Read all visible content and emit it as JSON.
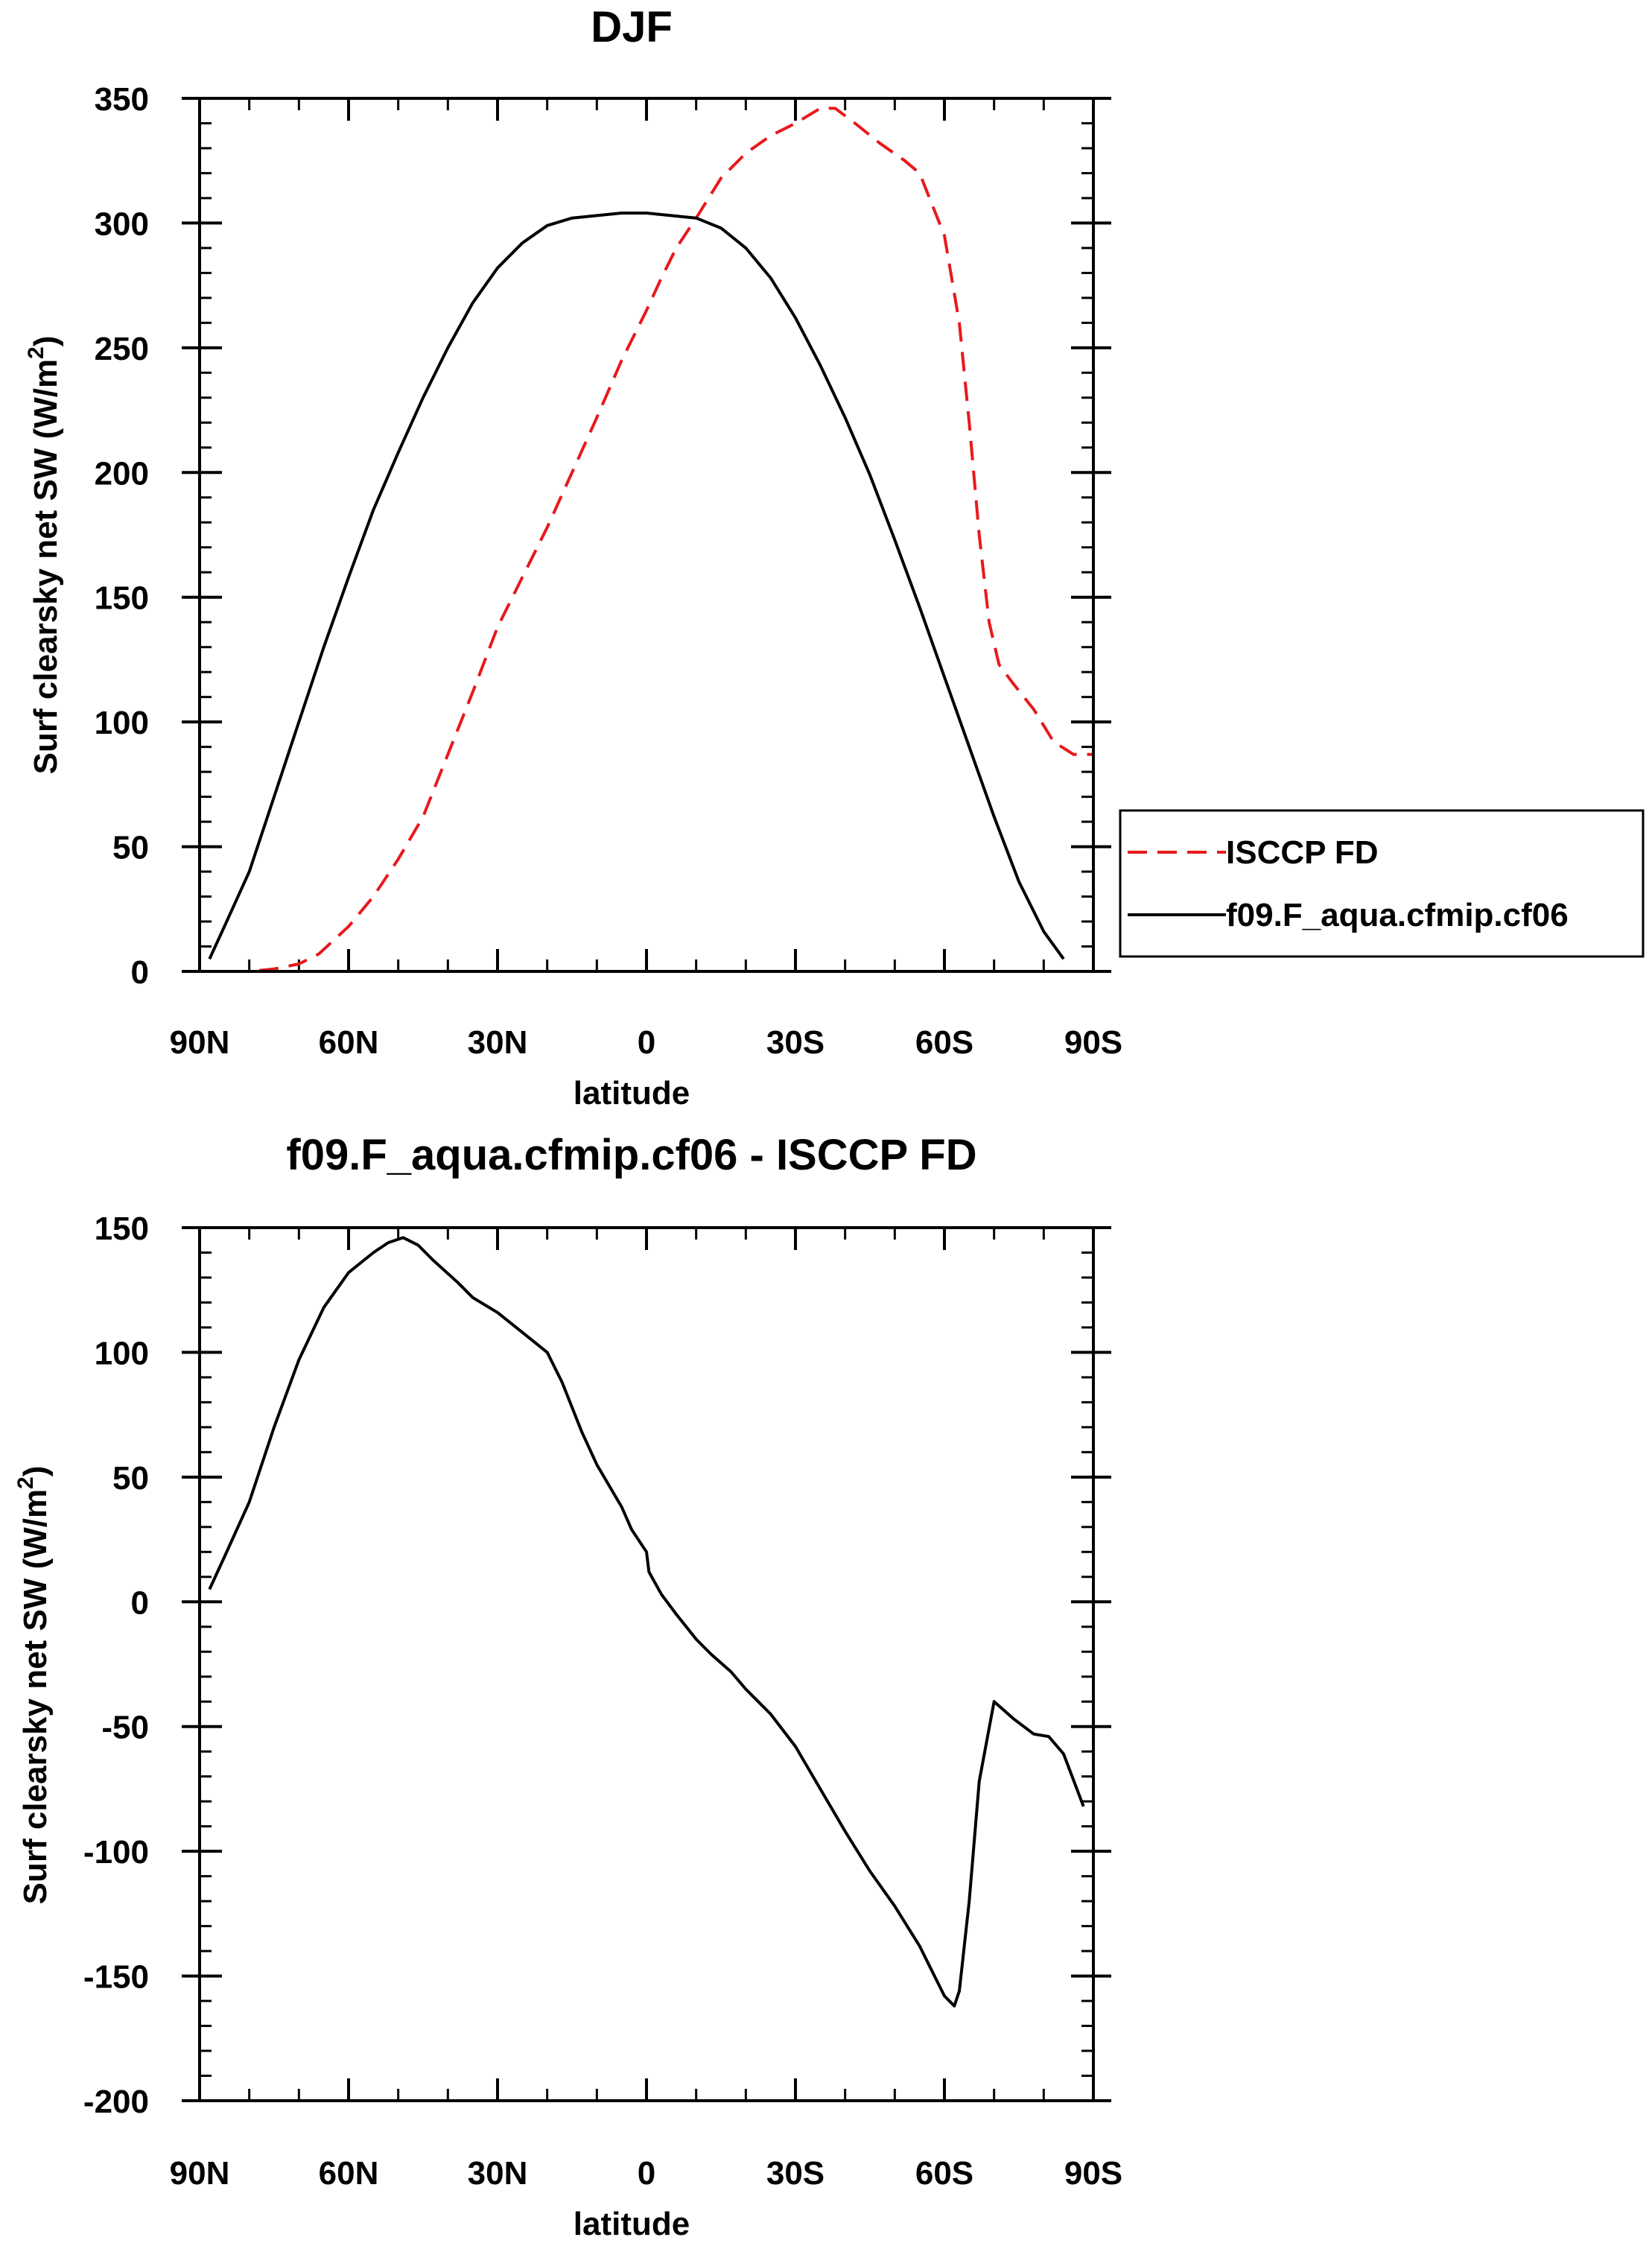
{
  "chart_data": [
    {
      "type": "line",
      "title": "DJF",
      "xlabel": "latitude",
      "ylabel": "Surf clearsky net SW (W/m²)",
      "ylabel_main": "Surf clearsky net SW (W/m",
      "ylabel_sup": "2",
      "ylabel_end": ")",
      "xlim": [
        -90,
        90
      ],
      "ylim": [
        0,
        350
      ],
      "x_ticks": [
        {
          "value": -90,
          "label": "90N"
        },
        {
          "value": -60,
          "label": "60N"
        },
        {
          "value": -30,
          "label": "30N"
        },
        {
          "value": 0,
          "label": "0"
        },
        {
          "value": 30,
          "label": "30S"
        },
        {
          "value": 60,
          "label": "60S"
        },
        {
          "value": 90,
          "label": "90S"
        }
      ],
      "y_ticks": [
        0,
        50,
        100,
        150,
        200,
        250,
        300,
        350
      ],
      "x_minor_step": 10,
      "y_minor_step": 10,
      "legend": {
        "position": "right",
        "entries": [
          "ISCCP FD",
          "f09.F_aqua.cfmip.cf06"
        ]
      },
      "series": [
        {
          "name": "ISCCP FD",
          "color": "#e8191c",
          "dashed": true,
          "points": [
            [
              -90,
              0
            ],
            [
              -85,
              0
            ],
            [
              -80,
              0
            ],
            [
              -75,
              1
            ],
            [
              -70,
              3
            ],
            [
              -66,
              7
            ],
            [
              -60,
              18
            ],
            [
              -55,
              30
            ],
            [
              -50,
              45
            ],
            [
              -45,
              62
            ],
            [
              -40,
              87
            ],
            [
              -35,
              112
            ],
            [
              -30,
              138
            ],
            [
              -25,
              158
            ],
            [
              -20,
              178
            ],
            [
              -15,
              200
            ],
            [
              -10,
              222
            ],
            [
              -5,
              245
            ],
            [
              0,
              265
            ],
            [
              3,
              278
            ],
            [
              6,
              290
            ],
            [
              10,
              302
            ],
            [
              15,
              318
            ],
            [
              20,
              328
            ],
            [
              25,
              335
            ],
            [
              30,
              340
            ],
            [
              35,
              346
            ],
            [
              38,
              346
            ],
            [
              42,
              340
            ],
            [
              47,
              332
            ],
            [
              52,
              325
            ],
            [
              55,
              320
            ],
            [
              60,
              295
            ],
            [
              63,
              260
            ],
            [
              65,
              220
            ],
            [
              67,
              175
            ],
            [
              69,
              140
            ],
            [
              71,
              123
            ],
            [
              74,
              115
            ],
            [
              78,
              105
            ],
            [
              82,
              92
            ],
            [
              86,
              87
            ],
            [
              90,
              87
            ]
          ]
        },
        {
          "name": "f09.F_aqua.cfmip.cf06",
          "color": "#000000",
          "dashed": false,
          "points": [
            [
              -88,
              5
            ],
            [
              -85,
              18
            ],
            [
              -80,
              40
            ],
            [
              -75,
              70
            ],
            [
              -70,
              100
            ],
            [
              -65,
              130
            ],
            [
              -60,
              158
            ],
            [
              -55,
              185
            ],
            [
              -50,
              208
            ],
            [
              -45,
              230
            ],
            [
              -40,
              250
            ],
            [
              -35,
              268
            ],
            [
              -30,
              282
            ],
            [
              -25,
              292
            ],
            [
              -20,
              299
            ],
            [
              -15,
              302
            ],
            [
              -10,
              303
            ],
            [
              -5,
              304
            ],
            [
              0,
              304
            ],
            [
              5,
              303
            ],
            [
              10,
              302
            ],
            [
              15,
              298
            ],
            [
              20,
              290
            ],
            [
              25,
              278
            ],
            [
              30,
              262
            ],
            [
              35,
              243
            ],
            [
              40,
              222
            ],
            [
              45,
              199
            ],
            [
              50,
              173
            ],
            [
              55,
              146
            ],
            [
              60,
              118
            ],
            [
              65,
              90
            ],
            [
              70,
              62
            ],
            [
              75,
              36
            ],
            [
              80,
              16
            ],
            [
              84,
              5
            ]
          ]
        }
      ]
    },
    {
      "type": "line",
      "title": "f09.F_aqua.cfmip.cf06 - ISCCP FD",
      "xlabel": "latitude",
      "ylabel": "Surf clearsky net SW (W/m²)",
      "ylabel_main": "Surf clearsky net SW (W/m",
      "ylabel_sup": "2",
      "ylabel_end": ")",
      "xlim": [
        -90,
        90
      ],
      "ylim": [
        -200,
        150
      ],
      "x_ticks": [
        {
          "value": -90,
          "label": "90N"
        },
        {
          "value": -60,
          "label": "60N"
        },
        {
          "value": -30,
          "label": "30N"
        },
        {
          "value": 0,
          "label": "0"
        },
        {
          "value": 30,
          "label": "30S"
        },
        {
          "value": 60,
          "label": "60S"
        },
        {
          "value": 90,
          "label": "90S"
        }
      ],
      "y_ticks": [
        -200,
        -150,
        -100,
        -50,
        0,
        50,
        100,
        150
      ],
      "x_minor_step": 10,
      "y_minor_step": 10,
      "series": [
        {
          "name": "f09.F_aqua.cfmip.cf06 - ISCCP FD",
          "color": "#000000",
          "dashed": false,
          "points": [
            [
              -88,
              5
            ],
            [
              -85,
              18
            ],
            [
              -80,
              40
            ],
            [
              -75,
              70
            ],
            [
              -70,
              97
            ],
            [
              -65,
              118
            ],
            [
              -60,
              132
            ],
            [
              -55,
              140
            ],
            [
              -52,
              144
            ],
            [
              -49,
              146
            ],
            [
              -46,
              143
            ],
            [
              -43,
              137
            ],
            [
              -38,
              128
            ],
            [
              -35,
              122
            ],
            [
              -30,
              116
            ],
            [
              -25,
              108
            ],
            [
              -20,
              100
            ],
            [
              -17,
              88
            ],
            [
              -13,
              68
            ],
            [
              -10,
              55
            ],
            [
              -5,
              38
            ],
            [
              -3,
              29
            ],
            [
              0,
              20
            ],
            [
              0.5,
              12
            ],
            [
              3,
              3
            ],
            [
              6,
              -5
            ],
            [
              10,
              -15
            ],
            [
              13,
              -21
            ],
            [
              17,
              -28
            ],
            [
              20,
              -35
            ],
            [
              25,
              -45
            ],
            [
              30,
              -58
            ],
            [
              35,
              -75
            ],
            [
              40,
              -92
            ],
            [
              45,
              -108
            ],
            [
              50,
              -122
            ],
            [
              55,
              -138
            ],
            [
              57,
              -146
            ],
            [
              60,
              -158
            ],
            [
              62,
              -162
            ],
            [
              63,
              -156
            ],
            [
              65,
              -120
            ],
            [
              67,
              -72
            ],
            [
              70,
              -40
            ],
            [
              74,
              -47
            ],
            [
              78,
              -53
            ],
            [
              81,
              -54
            ],
            [
              84,
              -61
            ],
            [
              88,
              -82
            ]
          ]
        }
      ]
    }
  ]
}
